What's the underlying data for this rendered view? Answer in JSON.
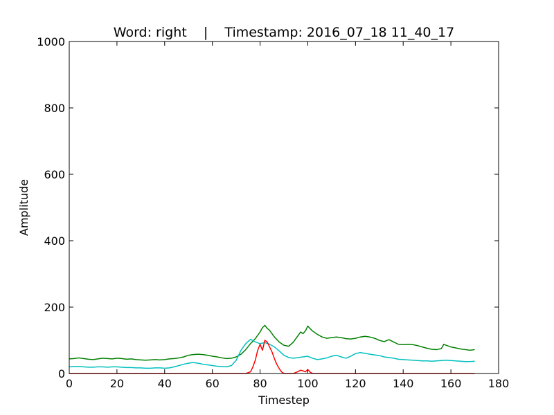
{
  "chart_data": {
    "type": "line",
    "title": "Word: right    |    Timestamp: 2016_07_18 11_40_17",
    "xlabel": "Timestep",
    "ylabel": "Amplitude",
    "xlim": [
      0,
      180
    ],
    "ylim": [
      0,
      1000
    ],
    "xticks": [
      0,
      20,
      40,
      60,
      80,
      100,
      120,
      140,
      160,
      180
    ],
    "yticks": [
      0,
      200,
      400,
      600,
      800,
      1000
    ],
    "grid": false,
    "legend": "none",
    "series": [
      {
        "color": "#008000",
        "points": [
          [
            0,
            44
          ],
          [
            2,
            45
          ],
          [
            4,
            47
          ],
          [
            6,
            45
          ],
          [
            8,
            43
          ],
          [
            10,
            42
          ],
          [
            12,
            44
          ],
          [
            14,
            46
          ],
          [
            16,
            45
          ],
          [
            18,
            44
          ],
          [
            20,
            46
          ],
          [
            22,
            45
          ],
          [
            24,
            43
          ],
          [
            26,
            44
          ],
          [
            28,
            42
          ],
          [
            30,
            41
          ],
          [
            32,
            40
          ],
          [
            34,
            41
          ],
          [
            36,
            42
          ],
          [
            38,
            41
          ],
          [
            40,
            42
          ],
          [
            42,
            44
          ],
          [
            44,
            45
          ],
          [
            46,
            47
          ],
          [
            48,
            50
          ],
          [
            50,
            55
          ],
          [
            52,
            57
          ],
          [
            54,
            58
          ],
          [
            56,
            57
          ],
          [
            58,
            55
          ],
          [
            60,
            52
          ],
          [
            62,
            50
          ],
          [
            64,
            47
          ],
          [
            66,
            45
          ],
          [
            68,
            46
          ],
          [
            70,
            50
          ],
          [
            72,
            58
          ],
          [
            74,
            72
          ],
          [
            76,
            90
          ],
          [
            78,
            105
          ],
          [
            80,
            125
          ],
          [
            81,
            138
          ],
          [
            82,
            145
          ],
          [
            83,
            136
          ],
          [
            84,
            130
          ],
          [
            85,
            120
          ],
          [
            86,
            110
          ],
          [
            88,
            95
          ],
          [
            90,
            85
          ],
          [
            92,
            82
          ],
          [
            94,
            95
          ],
          [
            96,
            115
          ],
          [
            97,
            125
          ],
          [
            98,
            120
          ],
          [
            99,
            128
          ],
          [
            100,
            143
          ],
          [
            101,
            135
          ],
          [
            102,
            128
          ],
          [
            104,
            118
          ],
          [
            106,
            110
          ],
          [
            108,
            106
          ],
          [
            110,
            108
          ],
          [
            112,
            110
          ],
          [
            114,
            108
          ],
          [
            116,
            105
          ],
          [
            118,
            104
          ],
          [
            120,
            106
          ],
          [
            122,
            110
          ],
          [
            124,
            112
          ],
          [
            126,
            110
          ],
          [
            128,
            106
          ],
          [
            130,
            100
          ],
          [
            132,
            96
          ],
          [
            134,
            102
          ],
          [
            136,
            95
          ],
          [
            138,
            88
          ],
          [
            140,
            87
          ],
          [
            142,
            88
          ],
          [
            144,
            87
          ],
          [
            146,
            84
          ],
          [
            148,
            80
          ],
          [
            150,
            76
          ],
          [
            152,
            73
          ],
          [
            154,
            72
          ],
          [
            156,
            75
          ],
          [
            157,
            88
          ],
          [
            158,
            85
          ],
          [
            160,
            80
          ],
          [
            162,
            77
          ],
          [
            164,
            74
          ],
          [
            166,
            72
          ],
          [
            168,
            70
          ],
          [
            170,
            72
          ]
        ]
      },
      {
        "color": "#00BFBF",
        "points": [
          [
            0,
            20
          ],
          [
            2,
            21
          ],
          [
            4,
            21
          ],
          [
            6,
            20
          ],
          [
            8,
            19
          ],
          [
            10,
            19
          ],
          [
            12,
            20
          ],
          [
            14,
            20
          ],
          [
            16,
            19
          ],
          [
            18,
            20
          ],
          [
            20,
            20
          ],
          [
            22,
            19
          ],
          [
            24,
            18
          ],
          [
            26,
            18
          ],
          [
            28,
            17
          ],
          [
            30,
            17
          ],
          [
            32,
            16
          ],
          [
            34,
            16
          ],
          [
            36,
            17
          ],
          [
            38,
            17
          ],
          [
            40,
            16
          ],
          [
            42,
            17
          ],
          [
            44,
            20
          ],
          [
            46,
            24
          ],
          [
            48,
            28
          ],
          [
            50,
            31
          ],
          [
            52,
            33
          ],
          [
            54,
            31
          ],
          [
            56,
            28
          ],
          [
            58,
            26
          ],
          [
            60,
            24
          ],
          [
            62,
            22
          ],
          [
            64,
            21
          ],
          [
            66,
            20
          ],
          [
            68,
            24
          ],
          [
            70,
            40
          ],
          [
            72,
            70
          ],
          [
            74,
            90
          ],
          [
            76,
            103
          ],
          [
            78,
            95
          ],
          [
            80,
            90
          ],
          [
            82,
            93
          ],
          [
            84,
            88
          ],
          [
            86,
            80
          ],
          [
            88,
            68
          ],
          [
            90,
            55
          ],
          [
            92,
            48
          ],
          [
            94,
            46
          ],
          [
            96,
            48
          ],
          [
            98,
            50
          ],
          [
            100,
            52
          ],
          [
            102,
            46
          ],
          [
            104,
            42
          ],
          [
            106,
            44
          ],
          [
            108,
            47
          ],
          [
            110,
            52
          ],
          [
            112,
            55
          ],
          [
            114,
            50
          ],
          [
            116,
            46
          ],
          [
            118,
            52
          ],
          [
            120,
            60
          ],
          [
            122,
            63
          ],
          [
            124,
            61
          ],
          [
            126,
            58
          ],
          [
            128,
            56
          ],
          [
            130,
            54
          ],
          [
            132,
            50
          ],
          [
            134,
            48
          ],
          [
            136,
            46
          ],
          [
            138,
            43
          ],
          [
            140,
            42
          ],
          [
            142,
            41
          ],
          [
            144,
            40
          ],
          [
            146,
            39
          ],
          [
            148,
            38
          ],
          [
            150,
            38
          ],
          [
            152,
            37
          ],
          [
            154,
            38
          ],
          [
            156,
            39
          ],
          [
            158,
            40
          ],
          [
            160,
            39
          ],
          [
            162,
            38
          ],
          [
            164,
            37
          ],
          [
            166,
            36
          ],
          [
            168,
            36
          ],
          [
            170,
            37
          ]
        ]
      },
      {
        "color": "#FF0000",
        "points": [
          [
            0,
            0
          ],
          [
            74,
            0
          ],
          [
            76,
            5
          ],
          [
            77,
            20
          ],
          [
            78,
            40
          ],
          [
            79,
            70
          ],
          [
            80,
            88
          ],
          [
            81,
            70
          ],
          [
            82,
            100
          ],
          [
            83,
            95
          ],
          [
            84,
            80
          ],
          [
            85,
            65
          ],
          [
            86,
            45
          ],
          [
            87,
            28
          ],
          [
            88,
            15
          ],
          [
            89,
            5
          ],
          [
            90,
            0
          ],
          [
            94,
            0
          ],
          [
            96,
            6
          ],
          [
            97,
            10
          ],
          [
            98,
            8
          ],
          [
            99,
            5
          ],
          [
            100,
            12
          ],
          [
            101,
            4
          ],
          [
            102,
            0
          ],
          [
            170,
            0
          ]
        ]
      }
    ]
  }
}
